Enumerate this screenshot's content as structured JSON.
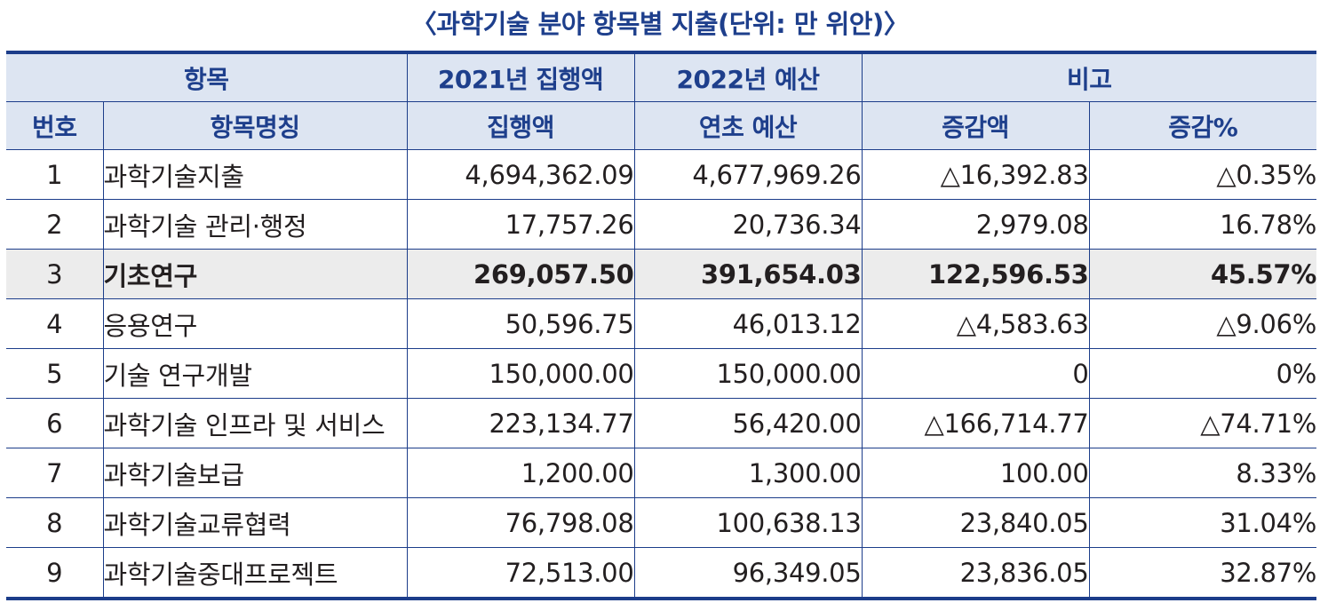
{
  "title": "〈과학기술 분야 항목별 지출(단위: 만 위안)〉",
  "header": {
    "item_group": "항목",
    "exec_2021": "2021년 집행액",
    "budget_2022": "2022년 예산",
    "note_group": "비고",
    "col_num": "번호",
    "col_name": "항목명칭",
    "col_exec": "집행액",
    "col_budget": "연초 예산",
    "col_diff": "증감액",
    "col_pct": "증감%"
  },
  "rows": [
    {
      "num": "1",
      "name": "과학기술지출",
      "exec": "4,694,362.09",
      "budget": "4,677,969.26",
      "diff": "△16,392.83",
      "pct": "△0.35%"
    },
    {
      "num": "2",
      "name": "과학기술 관리·행정",
      "exec": "17,757.26",
      "budget": "20,736.34",
      "diff": "2,979.08",
      "pct": "16.78%"
    },
    {
      "num": "3",
      "name": "기초연구",
      "exec": "269,057.50",
      "budget": "391,654.03",
      "diff": "122,596.53",
      "pct": "45.57%"
    },
    {
      "num": "4",
      "name": "응용연구",
      "exec": "50,596.75",
      "budget": "46,013.12",
      "diff": "△4,583.63",
      "pct": "△9.06%"
    },
    {
      "num": "5",
      "name": "기술 연구개발",
      "exec": "150,000.00",
      "budget": "150,000.00",
      "diff": "0",
      "pct": "0%"
    },
    {
      "num": "6",
      "name": "과학기술 인프라 및 서비스",
      "exec": "223,134.77",
      "budget": "56,420.00",
      "diff": "△166,714.77",
      "pct": "△74.71%"
    },
    {
      "num": "7",
      "name": "과학기술보급",
      "exec": "1,200.00",
      "budget": "1,300.00",
      "diff": "100.00",
      "pct": "8.33%"
    },
    {
      "num": "8",
      "name": "과학기술교류협력",
      "exec": "76,798.08",
      "budget": "100,638.13",
      "diff": "23,840.05",
      "pct": "31.04%"
    },
    {
      "num": "9",
      "name": "과학기술중대프로젝트",
      "exec": "72,513.00",
      "budget": "96,349.05",
      "diff": "23,836.05",
      "pct": "32.87%"
    }
  ]
}
